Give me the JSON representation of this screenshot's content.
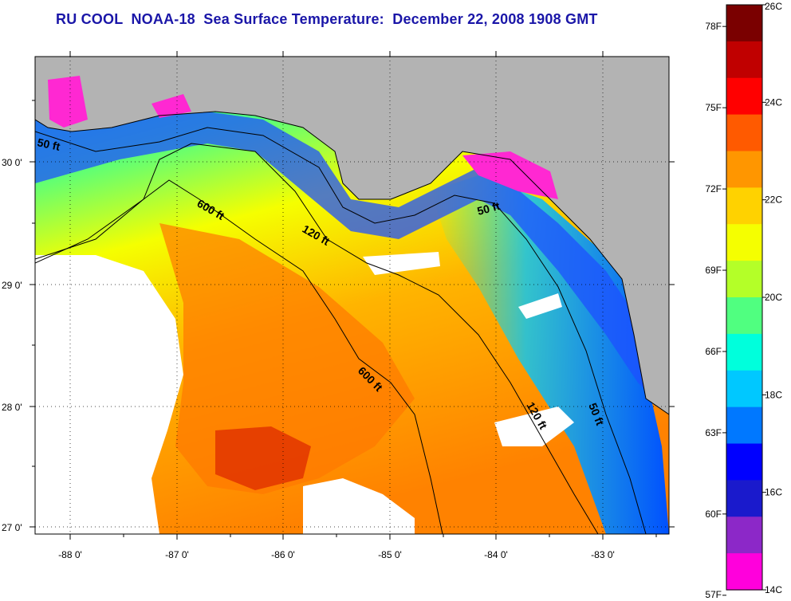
{
  "title": "RU COOL  NOAA-18  Sea Surface Temperature:  December 22, 2008 1908 GMT",
  "map": {
    "longitude_labels": [
      "-88 0'",
      "-87 0'",
      "-86 0'",
      "-85 0'",
      "-84 0'",
      "-83 0'"
    ],
    "latitude_labels": [
      "30 0'",
      "29 0'",
      "28 0'",
      "27 0'"
    ],
    "grid": true,
    "land_color": "#b3b3b3",
    "cloud_color": "#ffffff",
    "isobaths": [
      {
        "label": "50 ft"
      },
      {
        "label": "120 ft"
      },
      {
        "label": "600 ft"
      },
      {
        "label": "50 ft"
      },
      {
        "label": "600 ft"
      },
      {
        "label": "120 ft"
      },
      {
        "label": "50 ft"
      }
    ]
  },
  "colorbar": {
    "fahrenheit_labels": [
      "78F",
      "75F",
      "72F",
      "69F",
      "66F",
      "63F",
      "60F",
      "57F"
    ],
    "celsius_labels": [
      "26C",
      "24C",
      "22C",
      "20C",
      "18C",
      "16C",
      "14C"
    ],
    "range_c": [
      14,
      26
    ],
    "colors_top_to_bottom": [
      "#7a0000",
      "#c00000",
      "#ff0000",
      "#ff5a00",
      "#ff9600",
      "#ffd200",
      "#f5ff00",
      "#b4ff28",
      "#50ff80",
      "#00ffdc",
      "#00c8ff",
      "#0078ff",
      "#0000ff",
      "#1a1acc",
      "#8c28c8",
      "#ff00dc"
    ]
  }
}
